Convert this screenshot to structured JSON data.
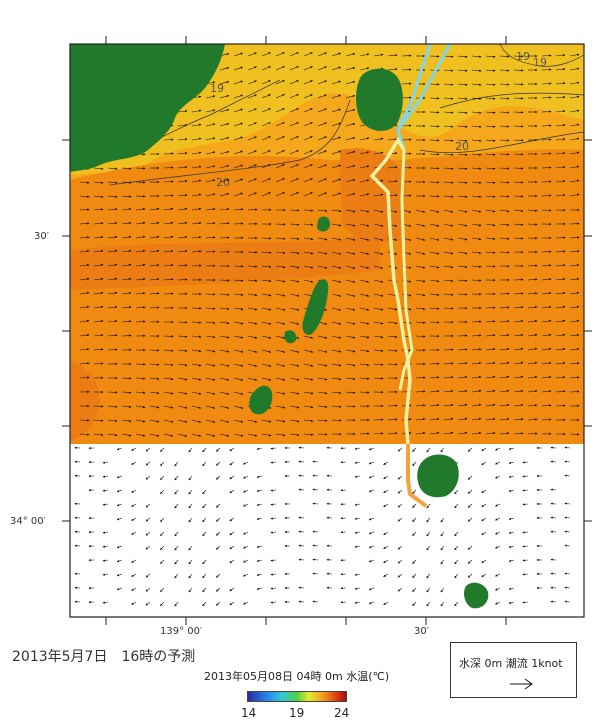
{
  "map": {
    "title": "",
    "contour_labels": [
      "19",
      "19",
      "19",
      "20",
      "20"
    ],
    "lat_labels": [
      "30′",
      "34° 00′"
    ],
    "lon_labels": [
      "139° 00′",
      "30′"
    ],
    "colors": {
      "cold": "#f0c020",
      "mid": "#f5a81c",
      "warm": "#f08a10",
      "warmest": "#ec7c14",
      "land": "#217a2b",
      "track_cyan": "#7fd8ea",
      "track_yellow": "#eef2a0",
      "track_orange": "#f4a23c"
    },
    "land_features": [
      "coast-northwest",
      "island-north",
      "island-small",
      "island-long",
      "island-islet",
      "island-mid",
      "island-south",
      "island-far-south"
    ]
  },
  "caption": "2013年5月7日　16時の予測",
  "scale": {
    "title": "2013年05月08日 04時 0m 水温(℃)",
    "ticks": [
      "14",
      "19",
      "24"
    ]
  },
  "legend": {
    "label": "水深 0m 潮流 1knot",
    "arrow_icon": "right-arrow-icon"
  }
}
